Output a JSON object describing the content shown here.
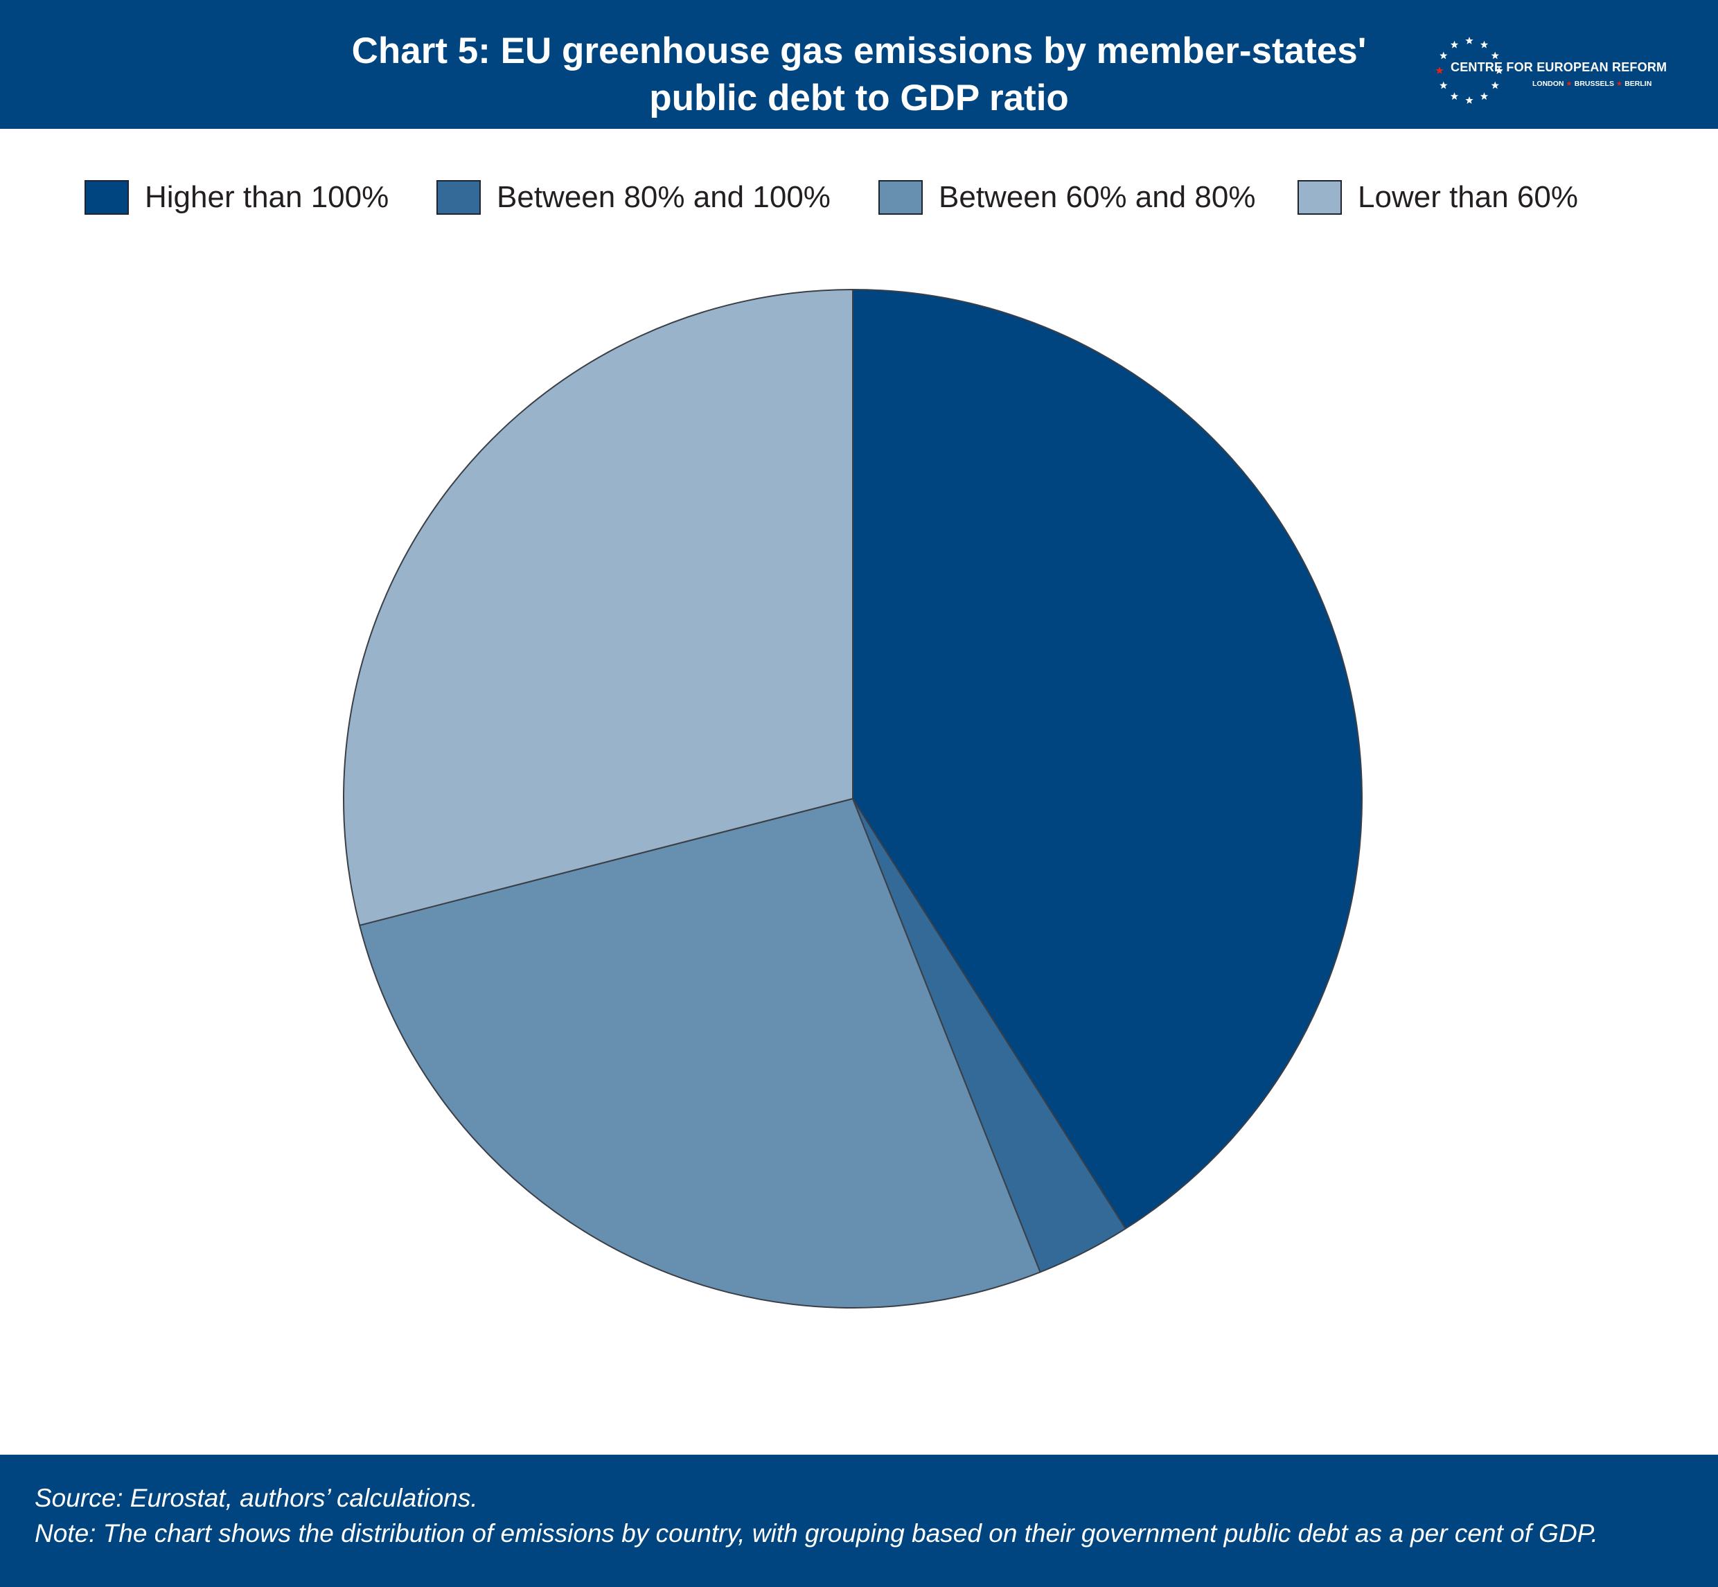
{
  "header": {
    "title_line1": "Chart 5: EU greenhouse gas emissions by member-states'",
    "title_line2": "public debt to GDP ratio",
    "logo": {
      "name": "CENTRE FOR EUROPEAN REFORM",
      "city1": "LONDON",
      "city2": "BRUSSELS",
      "city3": "BERLIN"
    }
  },
  "colors": {
    "brand": "#00457f",
    "higher_than_100": "#00457f",
    "between_80_100": "#336a98",
    "between_60_80": "#668fb0",
    "lower_than_60": "#99b4ca"
  },
  "chart_data": {
    "type": "pie",
    "title": "Chart 5: EU greenhouse gas emissions by member-states' public debt to GDP ratio",
    "legend_position": "top",
    "categories": [
      "Higher than 100%",
      "Between 80% and 100%",
      "Between 60% and 80%",
      "Lower than 60%"
    ],
    "values": [
      41,
      3,
      27,
      29
    ],
    "colors": [
      "#00457f",
      "#336a98",
      "#668fb0",
      "#99b4ca"
    ],
    "start": "12 o'clock",
    "direction": "clockwise"
  },
  "footer": {
    "source": "Source: Eurostat, authors’ calculations.",
    "note": "Note: The chart shows the distribution of emissions by country, with grouping based on their government public debt as a per cent of GDP."
  }
}
